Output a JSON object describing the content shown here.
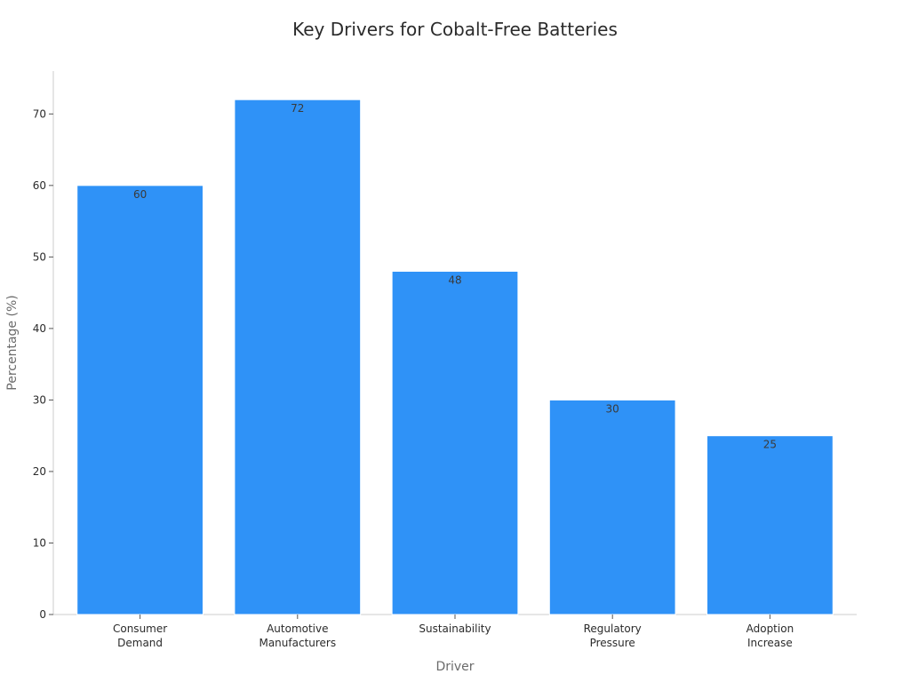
{
  "chart_data": {
    "type": "bar",
    "title": "Key Drivers for Cobalt-Free Batteries",
    "xlabel": "Driver",
    "ylabel": "Percentage (%)",
    "categories": [
      [
        "Consumer",
        "Demand"
      ],
      [
        "Automotive",
        "Manufacturers"
      ],
      [
        "Sustainability"
      ],
      [
        "Regulatory",
        "Pressure"
      ],
      [
        "Adoption",
        "Increase"
      ]
    ],
    "values": [
      60,
      72,
      48,
      30,
      25
    ],
    "ylim": [
      0,
      76
    ],
    "yticks": [
      0,
      10,
      20,
      30,
      40,
      50,
      60,
      70
    ],
    "grid": false,
    "legend": "none",
    "bar_color": "#2f92f7",
    "bar_edge_color": "#ffffff"
  }
}
